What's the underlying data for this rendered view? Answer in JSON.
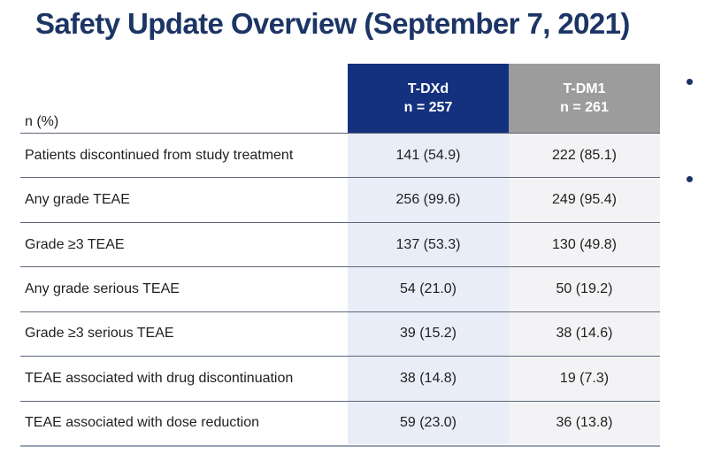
{
  "slide": {
    "title": "Safety Update Overview (September 7, 2021)"
  },
  "table": {
    "unit_label": "n (%)",
    "columns": [
      {
        "name": "T-DXd",
        "n_label": "n = 257"
      },
      {
        "name": "T-DM1",
        "n_label": "n = 261"
      }
    ],
    "rows": [
      {
        "label": "Patients discontinued from study treatment",
        "values": [
          "141 (54.9)",
          "222 (85.1)"
        ]
      },
      {
        "label": "Any grade TEAE",
        "values": [
          "256 (99.6)",
          "249 (95.4)"
        ]
      },
      {
        "label": "Grade ≥3 TEAE",
        "values": [
          "137 (53.3)",
          "130 (49.8)"
        ]
      },
      {
        "label": "Any grade serious TEAE",
        "values": [
          "54 (21.0)",
          "50 (19.2)"
        ]
      },
      {
        "label": "Grade ≥3 serious TEAE",
        "values": [
          "39 (15.2)",
          "38 (14.6)"
        ]
      },
      {
        "label": "TEAE associated with drug discontinuation",
        "values": [
          "38 (14.8)",
          "19 (7.3)"
        ]
      },
      {
        "label": "TEAE associated with dose reduction",
        "values": [
          "59 (23.0)",
          "36 (13.8)"
        ]
      }
    ]
  },
  "side_bullets": {
    "count": 2,
    "note": "two bullet markers of a text list cropped at the right edge"
  },
  "colors": {
    "title": "#1C3566",
    "header_tdxd_bg": "#14317E",
    "header_tdm1_bg": "#9C9C9C",
    "column_tdxd_bg": "#E9EDF7",
    "column_tdm1_bg": "#F3F3F5",
    "row_separator": "#5C6678",
    "bottom_border": "#9AA2B8",
    "bullet": "#1A3263"
  }
}
